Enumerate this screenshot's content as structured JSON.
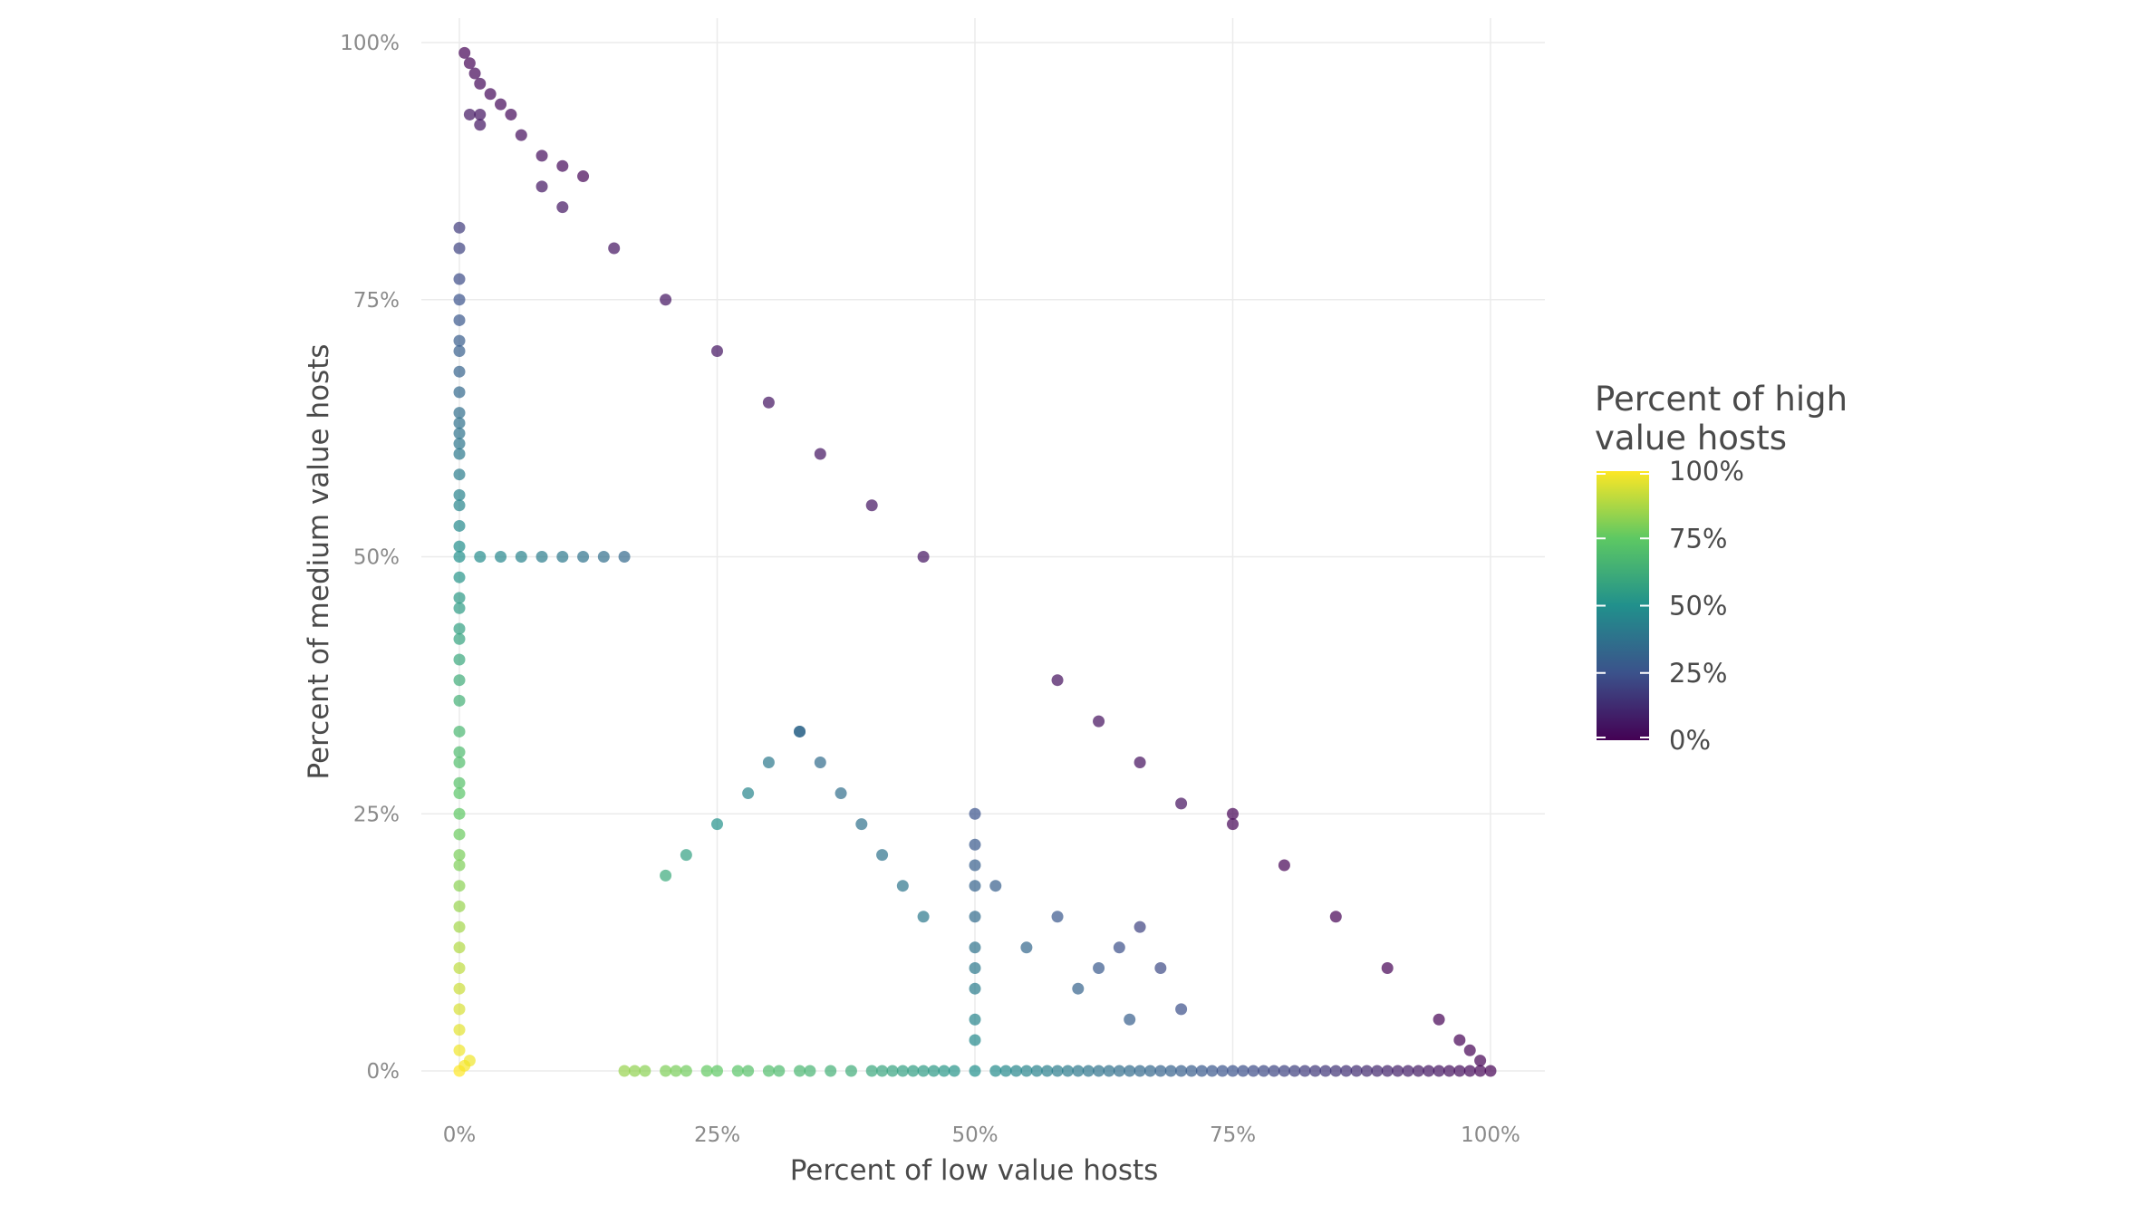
{
  "chart_data": {
    "type": "scatter",
    "title": "",
    "xlabel": "Percent of low value hosts",
    "ylabel": "Percent of medium value hosts",
    "xlim": [
      0,
      1
    ],
    "ylim": [
      0,
      1
    ],
    "x_ticks": [
      {
        "value": 0,
        "label": "0%"
      },
      {
        "value": 0.25,
        "label": "25%"
      },
      {
        "value": 0.5,
        "label": "50%"
      },
      {
        "value": 0.75,
        "label": "75%"
      },
      {
        "value": 1,
        "label": "100%"
      }
    ],
    "y_ticks": [
      {
        "value": 0,
        "label": "0%"
      },
      {
        "value": 0.25,
        "label": "25%"
      },
      {
        "value": 0.5,
        "label": "50%"
      },
      {
        "value": 0.75,
        "label": "75%"
      },
      {
        "value": 1,
        "label": "100%"
      }
    ],
    "grid": true,
    "legend": {
      "title_lines": [
        "Percent of high",
        "value hosts"
      ],
      "position": "right",
      "type": "continuous colorbar",
      "colormap": "viridis",
      "range": [
        0,
        1
      ],
      "ticks": [
        {
          "value": 1,
          "label": "100%"
        },
        {
          "value": 0.75,
          "label": "75%"
        },
        {
          "value": 0.5,
          "label": "50%"
        },
        {
          "value": 0.25,
          "label": "25%"
        },
        {
          "value": 0,
          "label": "0%"
        }
      ]
    },
    "color_encoding": "1 - x - y",
    "colors": {
      "viridis_stops": [
        "#440154",
        "#3b528b",
        "#21908c",
        "#5dc863",
        "#fde725"
      ],
      "grid": "#ebebeb",
      "tick_text": "#8a8a8a",
      "title_text": "#4a4a4a"
    },
    "point_opacity": 0.7,
    "series": [
      {
        "points": [
          [
            0.005,
            0.99
          ],
          [
            0.01,
            0.98
          ],
          [
            0.015,
            0.97
          ],
          [
            0.02,
            0.96
          ],
          [
            0.03,
            0.95
          ],
          [
            0.02,
            0.93
          ],
          [
            0.04,
            0.94
          ],
          [
            0.05,
            0.93
          ],
          [
            0.06,
            0.91
          ],
          [
            0.08,
            0.89
          ],
          [
            0.1,
            0.88
          ],
          [
            0.12,
            0.87
          ],
          [
            0.02,
            0.92
          ],
          [
            0.01,
            0.93
          ],
          [
            0.0,
            0.82
          ],
          [
            0.0,
            0.8
          ],
          [
            0.0,
            0.77
          ],
          [
            0.0,
            0.75
          ],
          [
            0.0,
            0.73
          ],
          [
            0.0,
            0.71
          ],
          [
            0.0,
            0.7
          ],
          [
            0.0,
            0.68
          ],
          [
            0.0,
            0.66
          ],
          [
            0.0,
            0.64
          ],
          [
            0.0,
            0.63
          ],
          [
            0.0,
            0.62
          ],
          [
            0.0,
            0.61
          ],
          [
            0.0,
            0.6
          ],
          [
            0.0,
            0.58
          ],
          [
            0.0,
            0.56
          ],
          [
            0.0,
            0.55
          ],
          [
            0.0,
            0.53
          ],
          [
            0.0,
            0.51
          ],
          [
            0.0,
            0.5
          ],
          [
            0.0,
            0.48
          ],
          [
            0.0,
            0.46
          ],
          [
            0.0,
            0.45
          ],
          [
            0.0,
            0.43
          ],
          [
            0.0,
            0.42
          ],
          [
            0.0,
            0.4
          ],
          [
            0.0,
            0.38
          ],
          [
            0.0,
            0.36
          ],
          [
            0.0,
            0.33
          ],
          [
            0.0,
            0.31
          ],
          [
            0.0,
            0.3
          ],
          [
            0.0,
            0.28
          ],
          [
            0.0,
            0.27
          ],
          [
            0.0,
            0.25
          ],
          [
            0.0,
            0.23
          ],
          [
            0.0,
            0.21
          ],
          [
            0.0,
            0.2
          ],
          [
            0.0,
            0.18
          ],
          [
            0.0,
            0.16
          ],
          [
            0.0,
            0.14
          ],
          [
            0.0,
            0.12
          ],
          [
            0.0,
            0.1
          ],
          [
            0.0,
            0.08
          ],
          [
            0.0,
            0.06
          ],
          [
            0.0,
            0.04
          ],
          [
            0.0,
            0.02
          ],
          [
            0.0,
            0.0
          ],
          [
            0.005,
            0.005
          ],
          [
            0.01,
            0.01
          ],
          [
            0.16,
            0.0
          ],
          [
            0.17,
            0.0
          ],
          [
            0.18,
            0.0
          ],
          [
            0.2,
            0.0
          ],
          [
            0.21,
            0.0
          ],
          [
            0.22,
            0.0
          ],
          [
            0.24,
            0.0
          ],
          [
            0.25,
            0.0
          ],
          [
            0.27,
            0.0
          ],
          [
            0.28,
            0.0
          ],
          [
            0.3,
            0.0
          ],
          [
            0.31,
            0.0
          ],
          [
            0.33,
            0.0
          ],
          [
            0.34,
            0.0
          ],
          [
            0.36,
            0.0
          ],
          [
            0.38,
            0.0
          ],
          [
            0.4,
            0.0
          ],
          [
            0.41,
            0.0
          ],
          [
            0.42,
            0.0
          ],
          [
            0.43,
            0.0
          ],
          [
            0.44,
            0.0
          ],
          [
            0.45,
            0.0
          ],
          [
            0.46,
            0.0
          ],
          [
            0.47,
            0.0
          ],
          [
            0.48,
            0.0
          ],
          [
            0.5,
            0.0
          ],
          [
            0.52,
            0.0
          ],
          [
            0.53,
            0.0
          ],
          [
            0.54,
            0.0
          ],
          [
            0.55,
            0.0
          ],
          [
            0.56,
            0.0
          ],
          [
            0.57,
            0.0
          ],
          [
            0.58,
            0.0
          ],
          [
            0.59,
            0.0
          ],
          [
            0.6,
            0.0
          ],
          [
            0.61,
            0.0
          ],
          [
            0.62,
            0.0
          ],
          [
            0.63,
            0.0
          ],
          [
            0.64,
            0.0
          ],
          [
            0.65,
            0.0
          ],
          [
            0.66,
            0.0
          ],
          [
            0.67,
            0.0
          ],
          [
            0.68,
            0.0
          ],
          [
            0.69,
            0.0
          ],
          [
            0.7,
            0.0
          ],
          [
            0.71,
            0.0
          ],
          [
            0.72,
            0.0
          ],
          [
            0.73,
            0.0
          ],
          [
            0.74,
            0.0
          ],
          [
            0.75,
            0.0
          ],
          [
            0.76,
            0.0
          ],
          [
            0.77,
            0.0
          ],
          [
            0.78,
            0.0
          ],
          [
            0.79,
            0.0
          ],
          [
            0.8,
            0.0
          ],
          [
            0.81,
            0.0
          ],
          [
            0.82,
            0.0
          ],
          [
            0.83,
            0.0
          ],
          [
            0.84,
            0.0
          ],
          [
            0.85,
            0.0
          ],
          [
            0.86,
            0.0
          ],
          [
            0.87,
            0.0
          ],
          [
            0.88,
            0.0
          ],
          [
            0.89,
            0.0
          ],
          [
            0.9,
            0.0
          ],
          [
            0.91,
            0.0
          ],
          [
            0.92,
            0.0
          ],
          [
            0.93,
            0.0
          ],
          [
            0.94,
            0.0
          ],
          [
            0.95,
            0.0
          ],
          [
            0.96,
            0.0
          ],
          [
            0.97,
            0.0
          ],
          [
            0.98,
            0.0
          ],
          [
            0.99,
            0.0
          ],
          [
            1.0,
            0.0
          ],
          [
            0.5,
            0.25
          ],
          [
            0.5,
            0.22
          ],
          [
            0.5,
            0.2
          ],
          [
            0.5,
            0.18
          ],
          [
            0.5,
            0.15
          ],
          [
            0.5,
            0.12
          ],
          [
            0.5,
            0.1
          ],
          [
            0.5,
            0.08
          ],
          [
            0.5,
            0.05
          ],
          [
            0.5,
            0.03
          ],
          [
            0.33,
            0.33
          ],
          [
            0.3,
            0.3
          ],
          [
            0.28,
            0.27
          ],
          [
            0.25,
            0.24
          ],
          [
            0.22,
            0.21
          ],
          [
            0.2,
            0.19
          ],
          [
            0.33,
            0.33
          ],
          [
            0.35,
            0.3
          ],
          [
            0.37,
            0.27
          ],
          [
            0.39,
            0.24
          ],
          [
            0.41,
            0.21
          ],
          [
            0.43,
            0.18
          ],
          [
            0.45,
            0.15
          ],
          [
            0.02,
            0.5
          ],
          [
            0.04,
            0.5
          ],
          [
            0.06,
            0.5
          ],
          [
            0.08,
            0.5
          ],
          [
            0.1,
            0.5
          ],
          [
            0.12,
            0.5
          ],
          [
            0.14,
            0.5
          ],
          [
            0.16,
            0.5
          ],
          [
            0.75,
            0.25
          ],
          [
            0.75,
            0.24
          ],
          [
            0.8,
            0.2
          ],
          [
            0.85,
            0.15
          ],
          [
            0.9,
            0.1
          ],
          [
            0.95,
            0.05
          ],
          [
            0.97,
            0.03
          ],
          [
            0.98,
            0.02
          ],
          [
            0.99,
            0.01
          ],
          [
            0.58,
            0.38
          ],
          [
            0.62,
            0.34
          ],
          [
            0.66,
            0.3
          ],
          [
            0.7,
            0.26
          ],
          [
            0.45,
            0.5
          ],
          [
            0.4,
            0.55
          ],
          [
            0.35,
            0.6
          ],
          [
            0.3,
            0.65
          ],
          [
            0.25,
            0.7
          ],
          [
            0.2,
            0.75
          ],
          [
            0.15,
            0.8
          ],
          [
            0.1,
            0.84
          ],
          [
            0.08,
            0.86
          ],
          [
            0.6,
            0.08
          ],
          [
            0.62,
            0.1
          ],
          [
            0.64,
            0.12
          ],
          [
            0.66,
            0.14
          ],
          [
            0.68,
            0.1
          ],
          [
            0.7,
            0.06
          ],
          [
            0.65,
            0.05
          ],
          [
            0.55,
            0.12
          ],
          [
            0.58,
            0.15
          ],
          [
            0.52,
            0.18
          ]
        ]
      }
    ]
  }
}
